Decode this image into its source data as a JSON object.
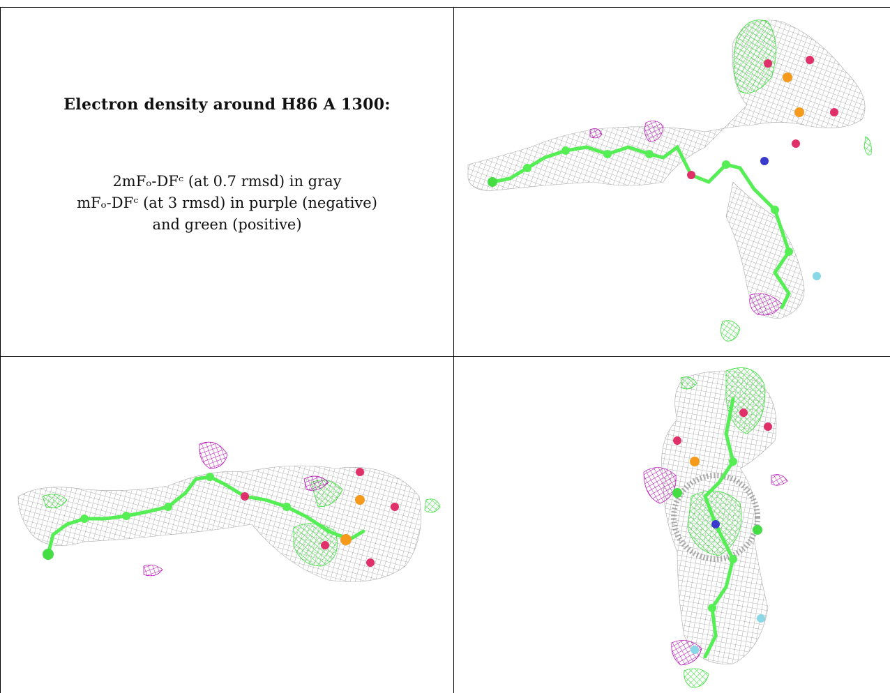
{
  "caption": {
    "title": "Electron density around H86 A 1300:",
    "lines": [
      "2mFₒ-DFᶜ (at 0.7 rmsd) in gray",
      "mFₒ-DFᶜ (at 3 rmsd) in purple (negative)",
      "and green (positive)"
    ]
  },
  "colors": {
    "mesh_2fofc": "#9a9a9a",
    "mesh_negative": "#b000b0",
    "mesh_positive": "#22dd22",
    "carbon": "#55ee55",
    "oxygen": "#e0306a",
    "phosphorus": "#f59a1a",
    "nitrogen": "#3a3acc",
    "fluorine": "#88d8e8"
  }
}
